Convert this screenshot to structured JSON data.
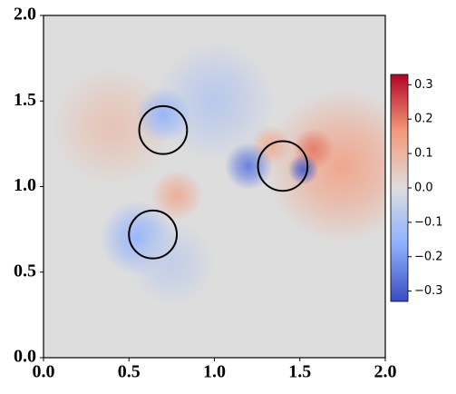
{
  "chart_data": {
    "type": "heatmap",
    "colormap": "coolwarm",
    "background_value": 0,
    "xlim": [
      0,
      2
    ],
    "ylim": [
      0,
      2
    ],
    "xticks": [
      {
        "value": 0,
        "label": "0.0"
      },
      0.5,
      {
        "value": 1,
        "label": "1.0"
      },
      1.5,
      {
        "value": 2,
        "label": "2.0"
      }
    ],
    "yticks": [
      {
        "value": 0,
        "label": "0.0"
      },
      0.5,
      {
        "value": 1,
        "label": "1.0"
      },
      1.5,
      {
        "value": 2,
        "label": "2.0"
      }
    ],
    "colorbar": {
      "lim": [
        -0.33,
        0.33
      ],
      "ticks": [
        {
          "value": -0.3,
          "label": "−0.3"
        },
        {
          "value": -0.2,
          "label": "−0.2"
        },
        {
          "value": -0.1,
          "label": "−0.1"
        },
        {
          "value": 0,
          "label": "0.0"
        },
        0.1,
        0.2,
        0.3
      ]
    },
    "circles": [
      {
        "x": 0.7,
        "y": 1.33,
        "r": 0.14
      },
      {
        "x": 0.64,
        "y": 0.72,
        "r": 0.14
      },
      {
        "x": 1.4,
        "y": 1.12,
        "r": 0.145
      }
    ],
    "field": [
      {
        "x": 1.75,
        "y": 1.12,
        "value": 0.14,
        "radius": 0.45
      },
      {
        "x": 1.58,
        "y": 1.22,
        "value": 0.2,
        "radius": 0.12
      },
      {
        "x": 1.33,
        "y": 1.24,
        "value": 0.12,
        "radius": 0.12
      },
      {
        "x": 1.52,
        "y": 1.1,
        "value": -0.3,
        "radius": 0.09
      },
      {
        "x": 1.2,
        "y": 1.12,
        "value": -0.25,
        "radius": 0.14
      },
      {
        "x": 1.0,
        "y": 1.5,
        "value": -0.08,
        "radius": 0.35
      },
      {
        "x": 0.4,
        "y": 1.35,
        "value": 0.07,
        "radius": 0.35
      },
      {
        "x": 0.7,
        "y": 1.42,
        "value": -0.15,
        "radius": 0.16
      },
      {
        "x": 0.55,
        "y": 0.7,
        "value": -0.15,
        "radius": 0.22
      },
      {
        "x": 0.78,
        "y": 0.95,
        "value": 0.12,
        "radius": 0.15
      },
      {
        "x": 0.75,
        "y": 0.55,
        "value": -0.06,
        "radius": 0.25
      }
    ]
  }
}
